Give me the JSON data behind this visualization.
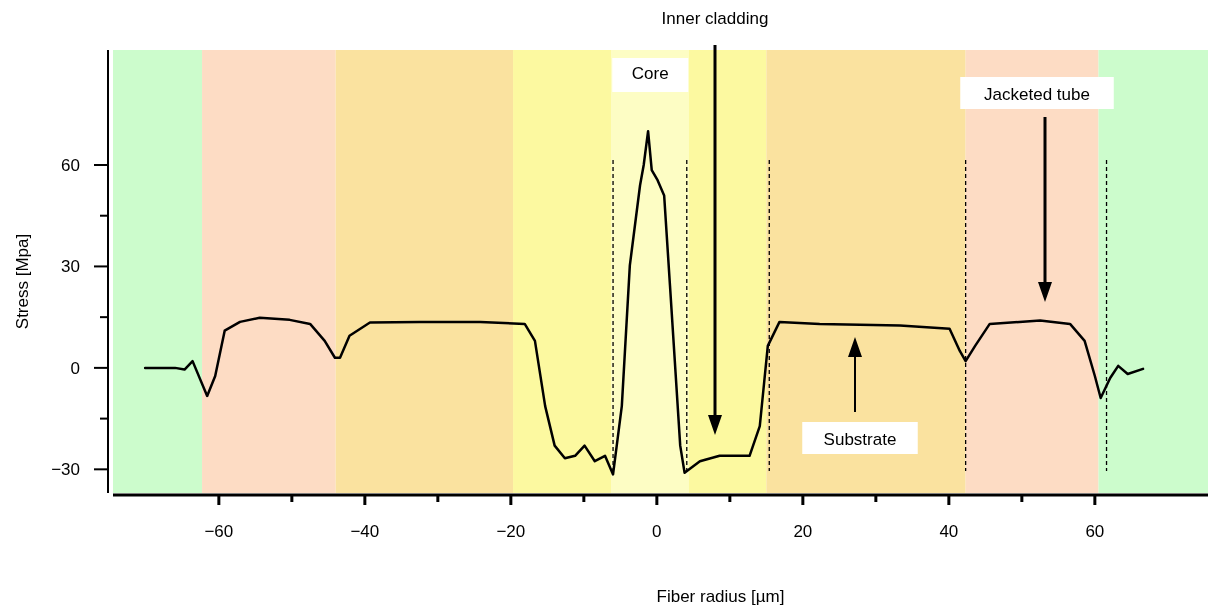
{
  "chart_data": {
    "type": "line",
    "xlabel": "Fiber radius   [µm]",
    "ylabel": "Stress   [Mpa]",
    "xlim": [
      -74.5,
      75.5
    ],
    "ylim": [
      -37,
      94
    ],
    "xticks": [
      -60,
      {
        "value": -50,
        "label": null
      },
      -40,
      {
        "value": -30,
        "label": null
      },
      -20,
      {
        "value": -10,
        "label": null
      },
      0,
      {
        "value": 10,
        "label": null
      },
      20,
      {
        "value": 30,
        "label": null
      },
      40,
      {
        "value": 50,
        "label": null
      },
      60
    ],
    "yticks": [
      -30,
      {
        "value": -15,
        "label": null
      },
      0,
      {
        "value": 15,
        "label": null
      },
      30,
      {
        "value": 45,
        "label": null
      },
      60
    ],
    "grid": false,
    "marker": "none",
    "line_style": "solid",
    "series": [
      {
        "color": "#000000",
        "x": [
          -70.1,
          -66,
          -64.7,
          -63.6,
          -61.6,
          -60.5,
          -59.2,
          -57.1,
          -54.4,
          -50.3,
          -47.5,
          -45.5,
          -44.1,
          -43.4,
          -42.1,
          -39.3,
          -32.5,
          -24.2,
          -18.1,
          -16.7,
          -15.3,
          -14,
          -12.6,
          -11.2,
          -9.9,
          -8.5,
          -7.1,
          -6,
          -4.8,
          -3.7,
          -2.3,
          -1.8,
          -1.2,
          -0.7,
          0.1,
          1,
          1.8,
          3.2,
          3.8,
          5.9,
          8.6,
          12.7,
          14.1,
          15.2,
          16.8,
          22.3,
          33.3,
          40.1,
          41.5,
          42.3,
          43.6,
          45.6,
          52.5,
          56.6,
          58.6,
          60,
          60.8,
          62.1,
          63.2,
          64.5,
          66.6
        ],
        "values": [
          0,
          0,
          -0.5,
          2,
          -8.3,
          -2.4,
          11,
          13.6,
          14.8,
          14.2,
          13,
          8,
          3,
          3,
          9.5,
          13.4,
          13.6,
          13.6,
          13,
          8,
          -11.3,
          -23,
          -26.7,
          -26,
          -23,
          -27.6,
          -26,
          -31.5,
          -11.3,
          30.3,
          54,
          60,
          70,
          58.5,
          55.5,
          51,
          24.3,
          -23,
          -31,
          -27.6,
          -26,
          -26,
          -17.2,
          6.5,
          13.6,
          13,
          12.5,
          11.6,
          5,
          2,
          6.5,
          13,
          14,
          13,
          8,
          -2.4,
          -8.9,
          -3,
          0.6,
          -1.8,
          -0.3
        ]
      }
    ],
    "bands": [
      {
        "axis": "x",
        "from": -74.5,
        "to": -62.3,
        "color": "#ccfccc"
      },
      {
        "axis": "x",
        "from": -62.3,
        "to": -44,
        "color": "#fddcc4"
      },
      {
        "axis": "x",
        "from": -44,
        "to": -19.7,
        "color": "#fae29f"
      },
      {
        "axis": "x",
        "from": -19.7,
        "to": -6.2,
        "color": "#fcf9a0"
      },
      {
        "axis": "x",
        "from": -6.2,
        "to": 4.4,
        "color": "#fdfdc4",
        "label": "Core"
      },
      {
        "axis": "x",
        "from": 4.4,
        "to": 15,
        "color": "#fcf9a0"
      },
      {
        "axis": "x",
        "from": 15,
        "to": 42.3,
        "color": "#fae29f"
      },
      {
        "axis": "x",
        "from": 42.3,
        "to": 60.5,
        "color": "#fddcc4"
      },
      {
        "axis": "x",
        "from": 60.5,
        "to": 75.5,
        "color": "#ccfccc"
      }
    ],
    "ref_lines": [
      {
        "axis": "x",
        "value": -6,
        "color": "#000000",
        "line_style": "dashed"
      },
      {
        "axis": "x",
        "value": 4.1,
        "color": "#000000",
        "line_style": "dashed"
      },
      {
        "axis": "x",
        "value": 15.4,
        "color": "#000000",
        "line_style": "dashed"
      },
      {
        "axis": "x",
        "value": 42.3,
        "color": "#000000",
        "line_style": "dashed"
      },
      {
        "axis": "x",
        "value": 61.6,
        "color": "#000000",
        "line_style": "dashed"
      }
    ],
    "annotations": [
      "Inner cladding",
      "Substrate",
      "Jacketed tube"
    ]
  }
}
